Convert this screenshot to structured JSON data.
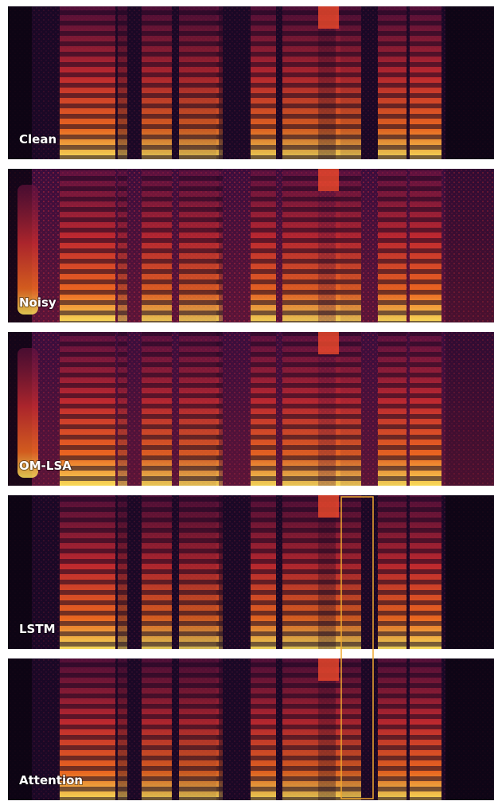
{
  "panels": [
    {
      "label": "Clean"
    },
    {
      "label": "Noisy"
    },
    {
      "label": "OM-LSA"
    },
    {
      "label": "LSTM"
    },
    {
      "label": "Attention"
    }
  ]
}
